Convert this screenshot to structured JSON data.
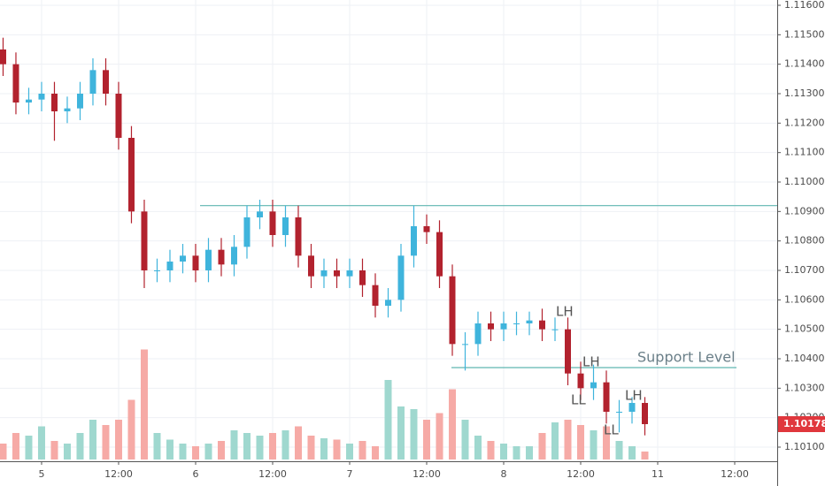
{
  "chart_data": {
    "type": "candlestick",
    "open": [
      1.1145,
      1.114,
      1.1127,
      1.1128,
      1.113,
      1.1124,
      1.1125,
      1.113,
      1.1138,
      1.113,
      1.1115,
      1.109,
      1.107,
      1.107,
      1.1073,
      1.1075,
      1.107,
      1.1077,
      1.1072,
      1.1078,
      1.1088,
      1.109,
      1.1082,
      1.1088,
      1.1075,
      1.1068,
      1.107,
      1.1068,
      1.107,
      1.1065,
      1.1058,
      1.106,
      1.1075,
      1.1085,
      1.1083,
      1.1068,
      1.1045,
      1.1045,
      1.1052,
      1.105,
      1.1052,
      1.1052,
      1.1053,
      1.105,
      1.105,
      1.1035,
      1.103,
      1.1032,
      1.1022,
      1.1022,
      1.1025
    ],
    "high": [
      1.1149,
      1.1144,
      1.1132,
      1.1134,
      1.1134,
      1.1129,
      1.1134,
      1.1142,
      1.1142,
      1.1134,
      1.1119,
      1.1094,
      1.1074,
      1.1077,
      1.1079,
      1.1079,
      1.1081,
      1.1081,
      1.1082,
      1.1092,
      1.1094,
      1.1094,
      1.1092,
      1.1092,
      1.1079,
      1.1074,
      1.1074,
      1.1074,
      1.1074,
      1.1069,
      1.1064,
      1.1079,
      1.1092,
      1.1089,
      1.1087,
      1.1072,
      1.1049,
      1.1056,
      1.1056,
      1.1056,
      1.1056,
      1.1056,
      1.1057,
      1.1054,
      1.1054,
      1.1039,
      1.1038,
      1.1036,
      1.1026,
      1.1027,
      1.1027
    ],
    "low": [
      1.1136,
      1.1123,
      1.1123,
      1.1124,
      1.1114,
      1.112,
      1.1121,
      1.1126,
      1.1126,
      1.1111,
      1.1086,
      1.1064,
      1.1066,
      1.1066,
      1.1069,
      1.1066,
      1.1066,
      1.1068,
      1.1068,
      1.1074,
      1.1084,
      1.1078,
      1.1078,
      1.1071,
      1.1064,
      1.1064,
      1.1064,
      1.1064,
      1.1061,
      1.1054,
      1.1054,
      1.1056,
      1.1071,
      1.1079,
      1.1064,
      1.1041,
      1.1036,
      1.1041,
      1.1046,
      1.1046,
      1.1048,
      1.1048,
      1.1046,
      1.1046,
      1.1031,
      1.1026,
      1.1026,
      1.1018,
      1.1015,
      1.1018,
      1.1014
    ],
    "close": [
      1.114,
      1.1127,
      1.1128,
      1.113,
      1.1124,
      1.1125,
      1.113,
      1.1138,
      1.113,
      1.1115,
      1.109,
      1.107,
      1.107,
      1.1073,
      1.1075,
      1.107,
      1.1077,
      1.1072,
      1.1078,
      1.1088,
      1.109,
      1.1082,
      1.1088,
      1.1075,
      1.1068,
      1.107,
      1.1068,
      1.107,
      1.1065,
      1.1058,
      1.106,
      1.1075,
      1.1085,
      1.1083,
      1.1068,
      1.1045,
      1.1045,
      1.1052,
      1.105,
      1.1052,
      1.1052,
      1.1053,
      1.105,
      1.105,
      1.1035,
      1.103,
      1.1032,
      1.1022,
      1.1022,
      1.1025,
      1.10178
    ],
    "volume": [
      12,
      20,
      18,
      25,
      14,
      12,
      20,
      30,
      26,
      30,
      45,
      83,
      20,
      15,
      12,
      10,
      12,
      14,
      22,
      20,
      18,
      20,
      22,
      25,
      18,
      16,
      15,
      12,
      14,
      10,
      60,
      40,
      38,
      30,
      35,
      53,
      30,
      18,
      14,
      12,
      10,
      10,
      20,
      28,
      30,
      26,
      22,
      25,
      14,
      10,
      6
    ],
    "volume_lim": [
      0,
      100
    ],
    "up_color": "#3fb4dc",
    "down_color": "#b2222e",
    "volume_up_color": "#9fd8cf",
    "volume_down_color": "#f6aaa6",
    "ylim": [
      1.116,
      1.101
    ],
    "yticks": [
      {
        "value": 1.116,
        "label": "1.11600"
      },
      {
        "value": 1.115,
        "label": "1.11500"
      },
      {
        "value": 1.114,
        "label": "1.11400"
      },
      {
        "value": 1.113,
        "label": "1.11300"
      },
      {
        "value": 1.112,
        "label": "1.11200"
      },
      {
        "value": 1.111,
        "label": "1.11100"
      },
      {
        "value": 1.11,
        "label": "1.11000"
      },
      {
        "value": 1.109,
        "label": "1.10900"
      },
      {
        "value": 1.108,
        "label": "1.10800"
      },
      {
        "value": 1.107,
        "label": "1.10700"
      },
      {
        "value": 1.106,
        "label": "1.10600"
      },
      {
        "value": 1.105,
        "label": "1.10500"
      },
      {
        "value": 1.104,
        "label": "1.10400"
      },
      {
        "value": 1.103,
        "label": "1.10300"
      },
      {
        "value": 1.102,
        "label": "1.10200"
      },
      {
        "value": 1.101,
        "label": "1.10100"
      }
    ],
    "xlim": [
      -0.24,
      60.31
    ],
    "xticks": [
      {
        "value": 3,
        "label": "5"
      },
      {
        "value": 9,
        "label": "12:00"
      },
      {
        "value": 15,
        "label": "6"
      },
      {
        "value": 21,
        "label": "12:00"
      },
      {
        "value": 27,
        "label": "7"
      },
      {
        "value": 33,
        "label": "12:00"
      },
      {
        "value": 39,
        "label": "8"
      },
      {
        "value": 45,
        "label": "12:00"
      },
      {
        "value": 51,
        "label": "11"
      },
      {
        "value": 57,
        "label": "12:00"
      }
    ],
    "grid": true,
    "levels": [
      1.1092,
      1.1037
    ],
    "level_color": "#5fb6b0",
    "last_price": {
      "value": 1.10178,
      "label": "1.10178"
    },
    "last_price_color": "#e0373d",
    "annotations": [
      "LH",
      "LH",
      "LL",
      "LH",
      "LL",
      "Support Level"
    ]
  }
}
